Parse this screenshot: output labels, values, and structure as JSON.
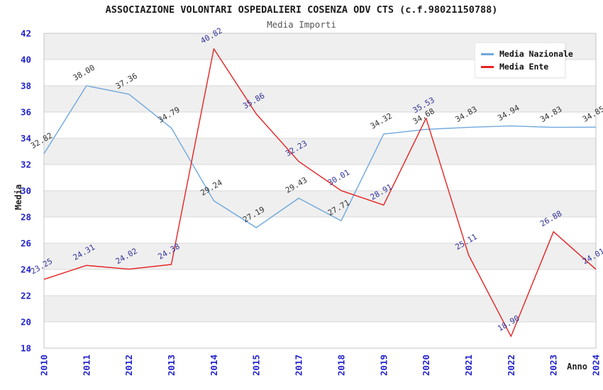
{
  "header": {
    "title": "ASSOCIAZIONE VOLONTARI OSPEDALIERI COSENZA ODV CTS (c.f.98021150788)",
    "subtitle": "Media Importi"
  },
  "chart_data": {
    "type": "line",
    "title": "ASSOCIAZIONE VOLONTARI OSPEDALIERI COSENZA ODV CTS (c.f.98021150788)",
    "subtitle": "Media Importi",
    "xlabel": "Anno",
    "ylabel": "Media",
    "categories": [
      "2010",
      "2011",
      "2012",
      "2013",
      "2014",
      "2015",
      "2017",
      "2018",
      "2019",
      "2020",
      "2021",
      "2022",
      "2023",
      "2024"
    ],
    "series": [
      {
        "name": "Media Nazionale",
        "color": "#6fa8dc",
        "label_color": "#333333",
        "values": [
          32.82,
          38.0,
          37.36,
          34.79,
          29.24,
          27.19,
          29.43,
          27.71,
          34.32,
          34.68,
          34.83,
          34.94,
          34.83,
          34.85
        ]
      },
      {
        "name": "Media Ente",
        "color": "#e62222",
        "label_color": "#333399",
        "values": [
          23.25,
          24.31,
          24.02,
          24.38,
          40.82,
          35.86,
          32.23,
          30.01,
          28.91,
          35.53,
          25.11,
          18.9,
          26.88,
          24.01
        ]
      }
    ],
    "ylim": [
      18,
      42
    ],
    "ytick_step": 2,
    "grid": true,
    "legend_position": "top-right",
    "tick_color": "#2222cc",
    "band_color": "#efefef",
    "grid_color": "#d9d9d9",
    "border_color": "#c4c4c4"
  }
}
